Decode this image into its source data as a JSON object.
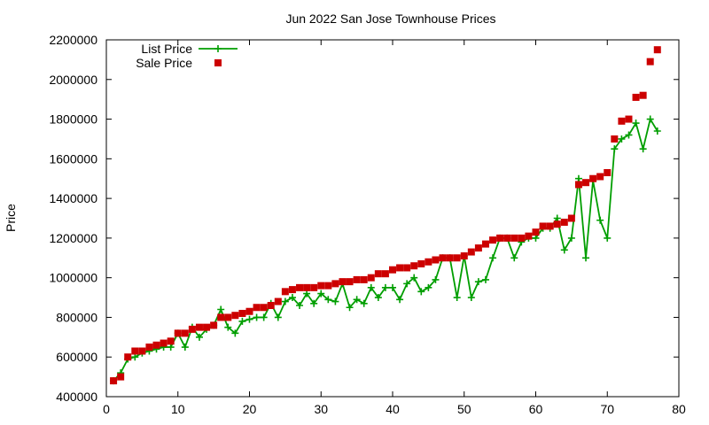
{
  "chart_data": {
    "type": "line",
    "title": "Jun 2022 San Jose Townhouse Prices",
    "xlabel": "",
    "ylabel": "Price",
    "xlim": [
      0,
      80
    ],
    "ylim": [
      400000,
      2200000
    ],
    "x_ticks": [
      0,
      10,
      20,
      30,
      40,
      50,
      60,
      70,
      80
    ],
    "y_ticks": [
      400000,
      600000,
      800000,
      1000000,
      1200000,
      1400000,
      1600000,
      1800000,
      2000000,
      2200000
    ],
    "grid": false,
    "legend_position": "top-left",
    "series": [
      {
        "name": "List Price",
        "style": "linespoints",
        "color": "#009e00",
        "x": [
          1,
          2,
          3,
          4,
          5,
          6,
          7,
          8,
          9,
          10,
          11,
          12,
          13,
          14,
          15,
          16,
          17,
          18,
          19,
          20,
          21,
          22,
          23,
          24,
          25,
          26,
          27,
          28,
          29,
          30,
          31,
          32,
          33,
          34,
          35,
          36,
          37,
          38,
          39,
          40,
          41,
          42,
          43,
          44,
          45,
          46,
          47,
          48,
          49,
          50,
          51,
          52,
          53,
          54,
          55,
          56,
          57,
          58,
          59,
          60,
          61,
          62,
          63,
          64,
          65,
          66,
          67,
          68,
          69,
          70,
          71,
          72,
          73,
          74,
          75,
          76,
          77
        ],
        "values": [
          480000,
          520000,
          590000,
          600000,
          620000,
          630000,
          640000,
          650000,
          650000,
          720000,
          650000,
          750000,
          700000,
          740000,
          760000,
          840000,
          750000,
          720000,
          780000,
          790000,
          800000,
          800000,
          870000,
          800000,
          880000,
          900000,
          860000,
          920000,
          870000,
          920000,
          890000,
          880000,
          970000,
          850000,
          890000,
          870000,
          950000,
          900000,
          950000,
          950000,
          890000,
          970000,
          1000000,
          930000,
          950000,
          990000,
          1100000,
          1100000,
          900000,
          1110000,
          900000,
          980000,
          990000,
          1100000,
          1200000,
          1200000,
          1100000,
          1180000,
          1200000,
          1200000,
          1250000,
          1250000,
          1300000,
          1140000,
          1200000,
          1500000,
          1100000,
          1490000,
          1290000,
          1200000,
          1650000,
          1700000,
          1720000,
          1780000,
          1650000,
          1800000,
          1740000
        ]
      },
      {
        "name": "Sale Price",
        "style": "points",
        "color": "#cc0000",
        "x": [
          1,
          2,
          3,
          4,
          5,
          6,
          7,
          8,
          9,
          10,
          11,
          12,
          13,
          14,
          15,
          16,
          17,
          18,
          19,
          20,
          21,
          22,
          23,
          24,
          25,
          26,
          27,
          28,
          29,
          30,
          31,
          32,
          33,
          34,
          35,
          36,
          37,
          38,
          39,
          40,
          41,
          42,
          43,
          44,
          45,
          46,
          47,
          48,
          49,
          50,
          51,
          52,
          53,
          54,
          55,
          56,
          57,
          58,
          59,
          60,
          61,
          62,
          63,
          64,
          65,
          66,
          67,
          68,
          69,
          70,
          71,
          72,
          73,
          74,
          75,
          76,
          77
        ],
        "values": [
          480000,
          500000,
          600000,
          630000,
          630000,
          650000,
          660000,
          670000,
          680000,
          720000,
          720000,
          740000,
          750000,
          750000,
          760000,
          800000,
          800000,
          810000,
          820000,
          830000,
          850000,
          850000,
          860000,
          880000,
          930000,
          940000,
          950000,
          950000,
          950000,
          960000,
          960000,
          970000,
          980000,
          980000,
          990000,
          990000,
          1000000,
          1020000,
          1020000,
          1040000,
          1050000,
          1050000,
          1060000,
          1070000,
          1080000,
          1090000,
          1100000,
          1100000,
          1100000,
          1110000,
          1130000,
          1150000,
          1170000,
          1190000,
          1200000,
          1200000,
          1200000,
          1200000,
          1210000,
          1230000,
          1260000,
          1260000,
          1270000,
          1280000,
          1300000,
          1470000,
          1480000,
          1500000,
          1510000,
          1530000,
          1700000,
          1790000,
          1800000,
          1910000,
          1920000,
          2090000,
          2150000
        ]
      }
    ]
  }
}
